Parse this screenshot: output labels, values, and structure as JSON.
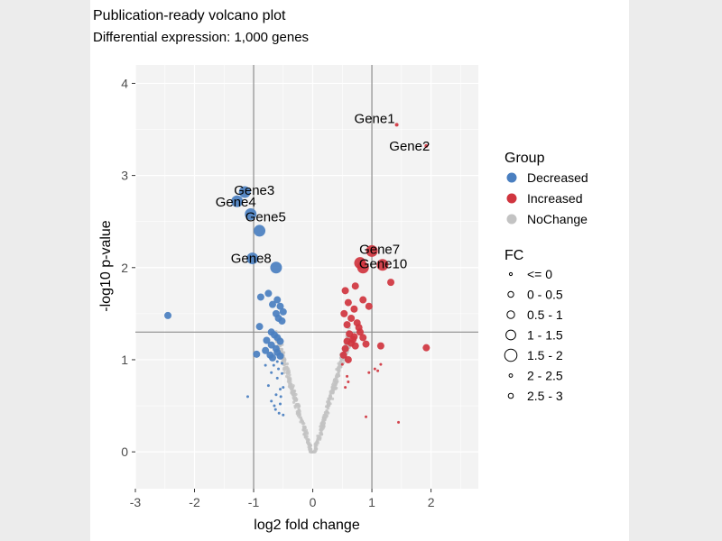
{
  "chart_data": {
    "type": "scatter",
    "title": "Publication-ready volcano plot",
    "subtitle": "Differential expression: 1,000 genes",
    "xlabel": "log2 fold change",
    "ylabel": "-log10 p-value",
    "xlim": [
      -3,
      2.8
    ],
    "ylim": [
      -0.4,
      4.2
    ],
    "xticks": [
      -3,
      -2,
      -1,
      0,
      1,
      2
    ],
    "yticks": [
      0,
      1,
      2,
      3,
      4
    ],
    "threshold_lines": {
      "x": [
        -1,
        1
      ],
      "y": [
        1.3
      ]
    },
    "grid": true,
    "colors": {
      "Decreased": "#4a7fc0",
      "Increased": "#d0353f",
      "NoChange": "#c3c3c3",
      "panel_background": "#f3f3f3",
      "threshold_line": "#8c8c8c"
    },
    "series": [
      {
        "name": "Decreased",
        "points": [
          [
            -1.15,
            2.82,
            1.75
          ],
          [
            -1.28,
            2.72,
            1.75
          ],
          [
            -1.05,
            2.58,
            1.75
          ],
          [
            -0.9,
            2.4,
            1.75
          ],
          [
            -1.02,
            2.1,
            1.75
          ],
          [
            -0.62,
            2.0,
            1.75
          ],
          [
            -2.45,
            1.48,
            0.75
          ],
          [
            -0.75,
            1.72,
            0.75
          ],
          [
            -0.88,
            1.68,
            0.75
          ],
          [
            -0.6,
            1.65,
            0.75
          ],
          [
            -0.68,
            1.6,
            0.75
          ],
          [
            -0.55,
            1.58,
            0.75
          ],
          [
            -0.62,
            1.5,
            0.75
          ],
          [
            -0.5,
            1.52,
            0.75
          ],
          [
            -0.58,
            1.45,
            0.75
          ],
          [
            -0.52,
            1.42,
            0.75
          ],
          [
            -0.9,
            1.36,
            0.75
          ],
          [
            -0.7,
            1.3,
            0.75
          ],
          [
            -0.65,
            1.27,
            0.75
          ],
          [
            -0.6,
            1.24,
            0.75
          ],
          [
            -0.78,
            1.21,
            0.75
          ],
          [
            -0.55,
            1.2,
            0.75
          ],
          [
            -0.7,
            1.16,
            0.75
          ],
          [
            -0.62,
            1.12,
            0.75
          ],
          [
            -0.8,
            1.1,
            0.75
          ],
          [
            -0.95,
            1.06,
            0.75
          ],
          [
            -0.72,
            1.05,
            0.75
          ],
          [
            -0.6,
            1.08,
            0.75
          ],
          [
            -0.55,
            1.04,
            0.75
          ],
          [
            -0.68,
            1.02,
            0.75
          ],
          [
            -1.1,
            0.6,
            -0.25
          ],
          [
            -0.8,
            0.94,
            -0.25
          ],
          [
            -0.7,
            0.86,
            -0.25
          ],
          [
            -0.75,
            0.72,
            -0.25
          ],
          [
            -0.6,
            0.8,
            -0.25
          ],
          [
            -0.55,
            0.68,
            -0.25
          ],
          [
            -0.62,
            0.62,
            -0.25
          ],
          [
            -0.5,
            0.7,
            -0.25
          ],
          [
            -0.52,
            0.85,
            -0.25
          ],
          [
            -0.58,
            0.9,
            -0.25
          ],
          [
            -0.65,
            0.5,
            -0.25
          ],
          [
            -0.55,
            0.52,
            -0.25
          ],
          [
            -0.57,
            0.42,
            -0.25
          ],
          [
            -0.5,
            0.4,
            -0.25
          ],
          [
            -0.63,
            0.46,
            -0.25
          ],
          [
            -0.52,
            0.96,
            -0.25
          ],
          [
            -0.6,
            0.98,
            -0.25
          ],
          [
            -0.66,
            0.94,
            -0.25
          ],
          [
            -0.54,
            0.6,
            -0.25
          ],
          [
            -0.7,
            0.55,
            -0.25
          ]
        ]
      },
      {
        "name": "Increased",
        "points": [
          [
            1.42,
            3.55,
            2.25
          ],
          [
            1.92,
            3.32,
            2.25
          ],
          [
            1.0,
            2.18,
            1.75
          ],
          [
            0.8,
            2.05,
            1.75
          ],
          [
            1.18,
            2.03,
            1.75
          ],
          [
            0.85,
            2.0,
            1.75
          ],
          [
            1.32,
            1.84,
            0.75
          ],
          [
            0.72,
            1.8,
            0.75
          ],
          [
            0.55,
            1.75,
            0.75
          ],
          [
            0.85,
            1.65,
            0.75
          ],
          [
            0.95,
            1.58,
            0.75
          ],
          [
            0.6,
            1.62,
            0.75
          ],
          [
            0.53,
            1.5,
            0.75
          ],
          [
            0.7,
            1.55,
            0.75
          ],
          [
            0.65,
            1.45,
            0.75
          ],
          [
            0.75,
            1.4,
            0.75
          ],
          [
            0.58,
            1.38,
            0.75
          ],
          [
            0.8,
            1.3,
            0.75
          ],
          [
            0.62,
            1.28,
            0.75
          ],
          [
            0.7,
            1.25,
            0.75
          ],
          [
            0.85,
            1.24,
            0.75
          ],
          [
            0.58,
            1.2,
            0.75
          ],
          [
            0.65,
            1.18,
            0.75
          ],
          [
            0.72,
            1.15,
            0.75
          ],
          [
            0.9,
            1.17,
            0.75
          ],
          [
            0.55,
            1.12,
            0.75
          ],
          [
            1.15,
            1.15,
            0.75
          ],
          [
            1.92,
            1.13,
            0.75
          ],
          [
            0.52,
            1.05,
            0.75
          ],
          [
            0.6,
            1.0,
            0.75
          ],
          [
            0.68,
            1.22,
            0.75
          ],
          [
            0.78,
            1.35,
            0.75
          ],
          [
            1.15,
            0.95,
            -0.25
          ],
          [
            1.05,
            0.9,
            -0.25
          ],
          [
            0.95,
            0.86,
            -0.25
          ],
          [
            1.1,
            0.88,
            -0.25
          ],
          [
            0.58,
            0.82,
            -0.25
          ],
          [
            0.55,
            0.7,
            -0.25
          ],
          [
            0.6,
            0.76,
            -0.25
          ],
          [
            0.5,
            0.95,
            -0.25
          ],
          [
            0.9,
            0.38,
            -0.25
          ],
          [
            1.45,
            0.32,
            -0.25
          ]
        ]
      }
    ],
    "labels": [
      {
        "text": "Gene1",
        "x": 1.42,
        "y": 3.55
      },
      {
        "text": "Gene2",
        "x": 1.92,
        "y": 3.32
      },
      {
        "text": "Gene3",
        "x": -1.15,
        "y": 2.82
      },
      {
        "text": "Gene4",
        "x": -1.28,
        "y": 2.72
      },
      {
        "text": "Gene5",
        "x": -1.05,
        "y": 2.58
      },
      {
        "text": "Gene7",
        "x": 1.0,
        "y": 2.18
      },
      {
        "text": "Gene8",
        "x": -1.02,
        "y": 2.1
      },
      {
        "text": "Gene10",
        "x": 1.18,
        "y": 2.03
      }
    ],
    "legend": {
      "position": "right",
      "group_title": "Group",
      "groups": [
        "Decreased",
        "Increased",
        "NoChange"
      ],
      "fc_title": "FC",
      "fc_bins": [
        "<= 0",
        "0 - 0.5",
        "0.5 - 1",
        "1 - 1.5",
        "1.5 - 2",
        "2 - 2.5",
        "2.5 - 3"
      ]
    }
  }
}
